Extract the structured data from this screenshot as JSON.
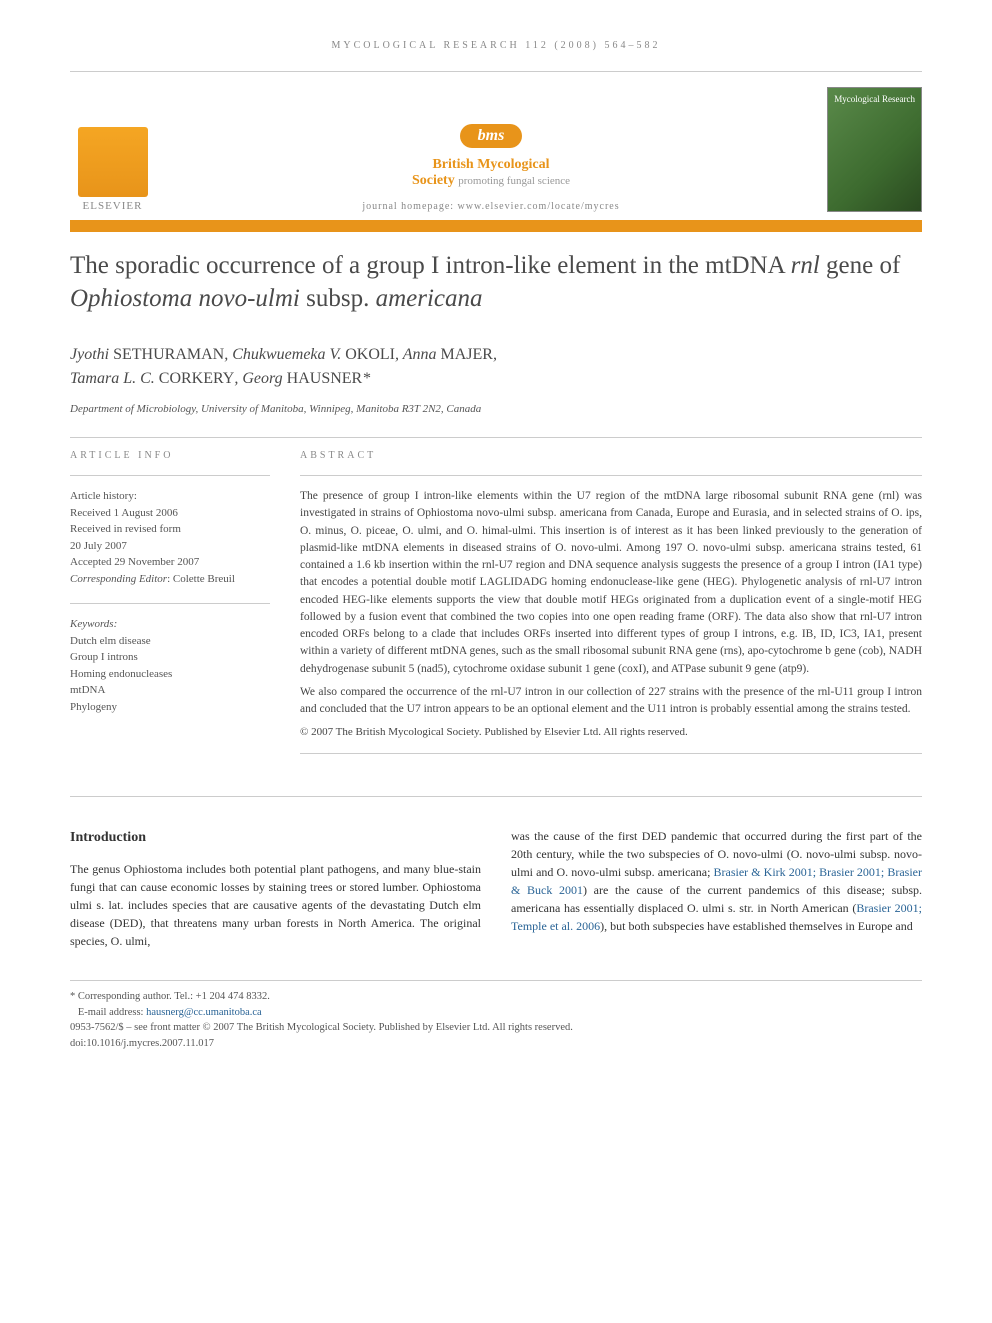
{
  "journal_ref": "MYCOLOGICAL RESEARCH 112 (2008) 564–582",
  "header": {
    "elsevier_label": "ELSEVIER",
    "bms_label": "bms",
    "society_main": "British Mycological",
    "society_name": "Society",
    "society_tagline": "promoting fungal science",
    "homepage_label": "journal homepage: ",
    "homepage_url": "www.elsevier.com/locate/mycres",
    "cover_title": "Mycological Research"
  },
  "title": {
    "part1": "The sporadic occurrence of a group I intron-like element in the mtDNA ",
    "ital1": "rnl",
    "part2": " gene of ",
    "ital2": "Ophiostoma novo-ulmi",
    "part3": " subsp. ",
    "ital3": "americana"
  },
  "authors": {
    "a1_given": "Jyothi ",
    "a1_sur": "SETHURAMAN",
    "a2_given": "Chukwuemeka V. ",
    "a2_sur": "OKOLI",
    "a3_given": "Anna ",
    "a3_sur": "MAJER",
    "a4_given": "Tamara L. C. ",
    "a4_sur": "CORKERY",
    "a5_given": "Georg ",
    "a5_sur": "HAUSNER",
    "corr_mark": "*"
  },
  "affiliation": "Department of Microbiology, University of Manitoba, Winnipeg, Manitoba R3T 2N2, Canada",
  "info": {
    "heading": "ARTICLE INFO",
    "history_head": "Article history:",
    "received": "Received 1 August 2006",
    "revised1": "Received in revised form",
    "revised2": "20 July 2007",
    "accepted": "Accepted 29 November 2007",
    "editor_label": "Corresponding Editor",
    "editor_name": ": Colette Breuil",
    "keywords_head": "Keywords:",
    "kw1": "Dutch elm disease",
    "kw2": "Group I introns",
    "kw3": "Homing endonucleases",
    "kw4": "mtDNA",
    "kw5": "Phylogeny"
  },
  "abstract": {
    "heading": "ABSTRACT",
    "p1": "The presence of group I intron-like elements within the U7 region of the mtDNA large ribosomal subunit RNA gene (rnl) was investigated in strains of Ophiostoma novo-ulmi subsp. americana from Canada, Europe and Eurasia, and in selected strains of O. ips, O. minus, O. piceae, O. ulmi, and O. himal-ulmi. This insertion is of interest as it has been linked previously to the generation of plasmid-like mtDNA elements in diseased strains of O. novo-ulmi. Among 197 O. novo-ulmi subsp. americana strains tested, 61 contained a 1.6 kb insertion within the rnl-U7 region and DNA sequence analysis suggests the presence of a group I intron (IA1 type) that encodes a potential double motif LAGLIDADG homing endonuclease-like gene (HEG). Phylogenetic analysis of rnl-U7 intron encoded HEG-like elements supports the view that double motif HEGs originated from a duplication event of a single-motif HEG followed by a fusion event that combined the two copies into one open reading frame (ORF). The data also show that rnl-U7 intron encoded ORFs belong to a clade that includes ORFs inserted into different types of group I introns, e.g. IB, ID, IC3, IA1, present within a variety of different mtDNA genes, such as the small ribosomal subunit RNA gene (rns), apo-cytochrome b gene (cob), NADH dehydrogenase subunit 5 (nad5), cytochrome oxidase subunit 1 gene (coxI), and ATPase subunit 9 gene (atp9).",
    "p2": "We also compared the occurrence of the rnl-U7 intron in our collection of 227 strains with the presence of the rnl-U11 group I intron and concluded that the U7 intron appears to be an optional element and the U11 intron is probably essential among the strains tested.",
    "copyright": "© 2007 The British Mycological Society. Published by Elsevier Ltd. All rights reserved."
  },
  "intro": {
    "heading": "Introduction",
    "left": "The genus Ophiostoma includes both potential plant pathogens, and many blue-stain fungi that can cause economic losses by staining trees or stored lumber. Ophiostoma ulmi s. lat. includes species that are causative agents of the devastating Dutch elm disease (DED), that threatens many urban forests in North America. The original species, O. ulmi,",
    "right_a": "was the cause of the first DED pandemic that occurred during the first part of the 20th century, while the two subspecies of O. novo-ulmi (O. novo-ulmi subsp. novo-ulmi and O. novo-ulmi subsp. americana; ",
    "right_link1": "Brasier & Kirk 2001; Brasier 2001; Brasier & Buck 2001",
    "right_b": ") are the cause of the current pandemics of this disease; subsp. americana has essentially displaced O. ulmi s. str. in North American (",
    "right_link2": "Brasier 2001; Temple et al. 2006",
    "right_c": "), but both subspecies have established themselves in Europe and"
  },
  "footnotes": {
    "corr": "* Corresponding author. Tel.: +1 204 474 8332.",
    "email_label": "E-mail address: ",
    "email": "hausnerg@cc.umanitoba.ca",
    "issn": "0953-7562/$ – see front matter © 2007 The British Mycological Society. Published by Elsevier Ltd. All rights reserved.",
    "doi": "doi:10.1016/j.mycres.2007.11.017"
  },
  "colors": {
    "accent": "#e8941a",
    "link": "#2a6496",
    "text": "#333333",
    "muted": "#888888"
  }
}
